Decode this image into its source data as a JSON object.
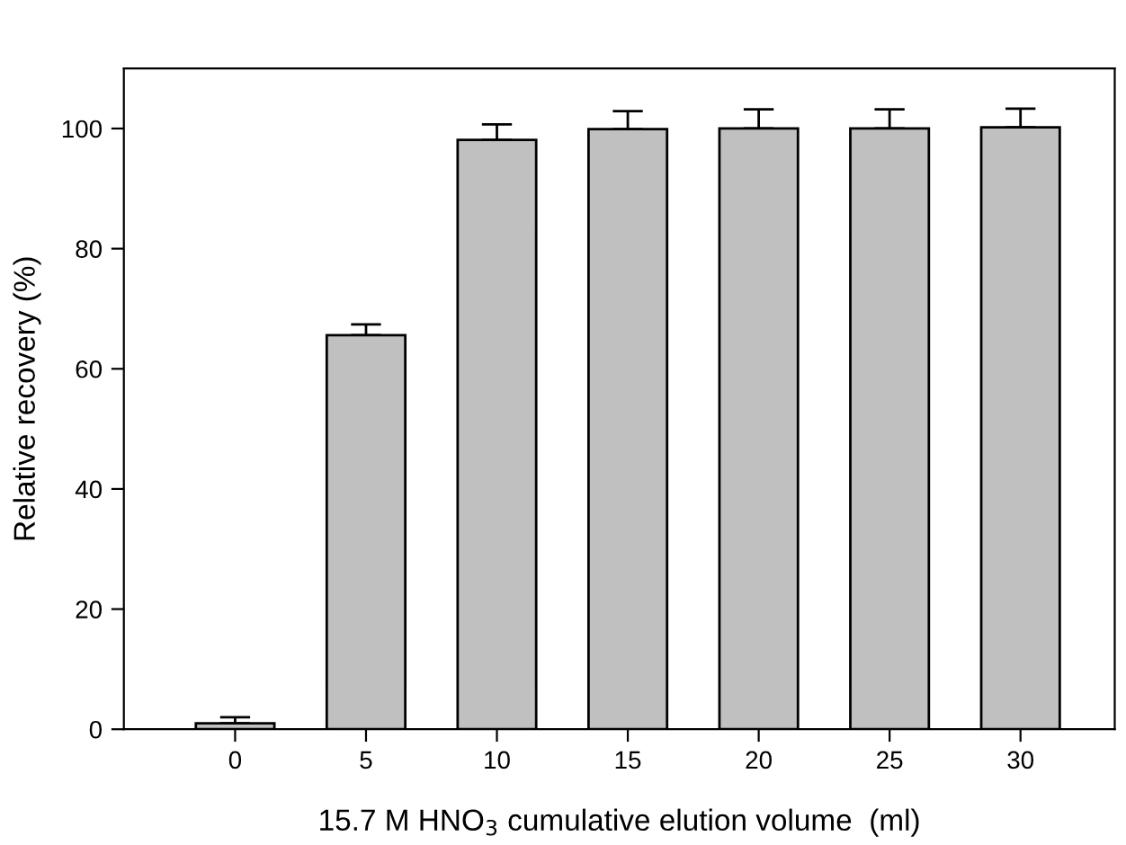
{
  "chart_data": {
    "type": "bar",
    "categories": [
      "0",
      "5",
      "10",
      "15",
      "20",
      "25",
      "30"
    ],
    "values": [
      1.0,
      65.6,
      98.1,
      99.9,
      100.0,
      100.0,
      100.2
    ],
    "errors": [
      [
        1.0,
        2.0
      ],
      [
        65.6,
        67.4
      ],
      [
        98.1,
        100.7
      ],
      [
        99.9,
        102.9
      ],
      [
        100.0,
        103.2
      ],
      [
        100.0,
        103.2
      ],
      [
        100.2,
        103.3
      ]
    ],
    "color": "#c0c0c0",
    "xlabel": "15.7 M HNO$_{3}$ cumulative elution volume  (ml)",
    "ylabel": "Relative recovery (%)",
    "ylim": [
      0,
      110
    ],
    "yticks": [
      0,
      20,
      40,
      60,
      80,
      100
    ],
    "grid": false,
    "legend": false
  }
}
